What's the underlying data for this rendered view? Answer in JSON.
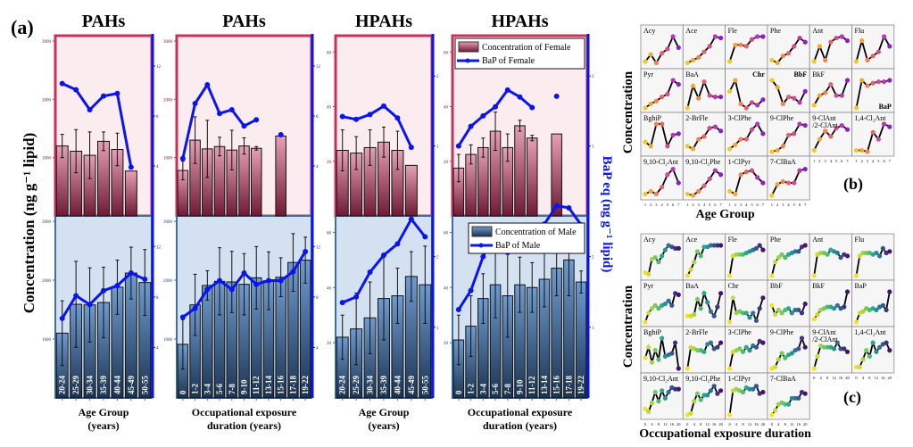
{
  "panel_a_label": "(a)",
  "panel_b_label": "(b)",
  "panel_c_label": "(c)",
  "left_ylabel": "Concentration (ng g⁻¹ lipid)",
  "right_ylabel": "BaP_eq (ng g⁻¹ lipid)",
  "colors": {
    "female_frame": "#c8325a",
    "female_bg": "#fbecf0",
    "female_bar_top": "#e6a0b4",
    "female_bar_bottom": "#6e1a36",
    "male_frame": "#3a6fa8",
    "male_bg": "#d3e1f1",
    "male_bar_top": "#6f9bcf",
    "male_bar_bottom": "#1b3350",
    "bap_line": "#0a14f0"
  },
  "legend_female": {
    "bar": "Concentration of Female",
    "line": "BaP_eq of Female"
  },
  "legend_male": {
    "bar": "Concentration of Male",
    "line": "BaP_eq of Male"
  },
  "chart_data": [
    {
      "type": "bar+line",
      "title": "PAHs",
      "xlabel": "Age Group\n(years)",
      "categories": [
        "20-24",
        "25-29",
        "30-34",
        "35-39",
        "40-44",
        "45-49",
        "50-55"
      ],
      "conc_ylim": [
        0,
        3000
      ],
      "conc_ticks": [
        1000,
        2000,
        3000
      ],
      "bap_ylim": [
        0,
        14
      ],
      "bap_ticks": [
        4,
        8,
        12
      ],
      "female": {
        "conc": [
          1200,
          1110,
          1040,
          1280,
          1140,
          770,
          null
        ],
        "conc_err": [
          200,
          370,
          400,
          160,
          280,
          0,
          null
        ],
        "bap": [
          10.6,
          10.1,
          8.5,
          9.6,
          9.8,
          3.9,
          null
        ]
      },
      "male": {
        "conc": [
          1100,
          1590,
          1580,
          1620,
          1880,
          2120,
          1960
        ],
        "conc_err": [
          550,
          730,
          630,
          600,
          460,
          440,
          560
        ],
        "bap": [
          6.3,
          8.1,
          7.4,
          8.5,
          8.9,
          9.9,
          9.4
        ]
      }
    },
    {
      "type": "bar+line",
      "title": "PAHs",
      "xlabel": "Occupational exposure\nduration (years)",
      "categories": [
        "0",
        "1-2",
        "3-4",
        "5-6",
        "7-8",
        "9-10",
        "11-12",
        "13-14",
        "15-16",
        "17-18",
        "19-22"
      ],
      "conc_ylim": [
        0,
        3000
      ],
      "conc_ticks": [
        1000,
        2000,
        3000
      ],
      "bap_ylim": [
        0,
        14
      ],
      "bap_ticks": [
        4,
        8,
        12
      ],
      "female": {
        "conc": [
          780,
          1300,
          1150,
          1190,
          1130,
          1200,
          1160,
          null,
          1370,
          null,
          null
        ],
        "conc_err": [
          160,
          400,
          490,
          160,
          340,
          140,
          30,
          null,
          0,
          null,
          null
        ],
        "bap": [
          4.6,
          9.0,
          10.5,
          8.2,
          8.5,
          7.2,
          7.7,
          null,
          6.5,
          null,
          null
        ]
      },
      "male": {
        "conc": [
          910,
          1580,
          1910,
          1980,
          1970,
          1930,
          2040,
          1990,
          2050,
          2300,
          2340
        ],
        "conc_err": [
          420,
          520,
          250,
          570,
          520,
          520,
          530,
          490,
          330,
          490,
          390
        ],
        "bap": [
          6.4,
          7.1,
          8.6,
          9.3,
          8.6,
          9.9,
          9.0,
          9.3,
          9.3,
          10.0,
          11.6
        ]
      }
    },
    {
      "type": "bar+line",
      "title": "HPAHs",
      "xlabel": "Age Group\n(years)",
      "categories": [
        "20-24",
        "25-29",
        "30-34",
        "35-39",
        "40-44",
        "45-49",
        "50-55"
      ],
      "conc_ylim": [
        0,
        64
      ],
      "conc_ticks": [
        20,
        40,
        60
      ],
      "bap_ylim": [
        0,
        2.5
      ],
      "bap_ticks": [
        1,
        2
      ],
      "female": {
        "conc": [
          24,
          23,
          25,
          27,
          24,
          18.5,
          null
        ],
        "conc_err": [
          7.5,
          6,
          6.5,
          5.5,
          7,
          0,
          null
        ],
        "bap": [
          1.42,
          1.38,
          1.45,
          1.57,
          1.4,
          0.98,
          null
        ]
      },
      "male": {
        "conc": [
          22,
          25,
          29,
          36,
          37,
          44,
          41
        ],
        "conc_err": [
          8,
          13,
          13,
          15,
          10,
          9,
          14
        ],
        "bap": [
          1.35,
          1.43,
          1.78,
          2.02,
          2.18,
          2.53,
          2.28
        ]
      }
    },
    {
      "type": "bar+line",
      "title": "HPAHs",
      "xlabel": "Occupational exposure\nduration (years)",
      "categories": [
        "0",
        "1-2",
        "3-4",
        "5-6",
        "7-8",
        "9-10",
        "11-12",
        "13-14",
        "15-16",
        "17-18",
        "19-22"
      ],
      "conc_ylim": [
        0,
        64
      ],
      "conc_ticks": [
        20,
        40,
        60
      ],
      "bap_ylim": [
        0,
        2.5
      ],
      "bap_ticks": [
        1,
        2
      ],
      "female": {
        "conc": [
          17.5,
          22.5,
          25,
          31,
          25,
          33,
          28.5,
          null,
          30,
          null,
          null
        ],
        "conc_err": [
          5,
          3.5,
          3.5,
          7,
          5,
          2,
          1,
          null,
          0,
          null,
          null
        ],
        "bap": [
          1.0,
          1.28,
          1.43,
          1.56,
          1.8,
          1.7,
          1.55,
          null,
          1.71,
          null,
          null
        ]
      },
      "male": {
        "conc": [
          21,
          26,
          36,
          41,
          37,
          41,
          40,
          43,
          47,
          50,
          42
        ],
        "conc_err": [
          9,
          11,
          9,
          12,
          15,
          10,
          9,
          10,
          10,
          13,
          4
        ],
        "bap": [
          1.25,
          1.52,
          2.0,
          2.38,
          2.06,
          2.38,
          2.38,
          2.46,
          2.72,
          2.69,
          2.45
        ]
      }
    },
    {
      "type": "line",
      "panel": "(b)",
      "ylabel": "Concentration",
      "xlabel": "Age Group",
      "x": [
        1,
        2,
        3,
        4,
        5,
        6,
        7
      ],
      "colormap": "plasma",
      "series": [
        {
          "name": "Acy",
          "values": [
            0.1,
            0.35,
            0.05,
            0.4,
            0.55,
            1.0,
            0.6
          ]
        },
        {
          "name": "Ace",
          "values": [
            0.05,
            0.15,
            0.25,
            0.45,
            0.65,
            1.0,
            0.95
          ]
        },
        {
          "name": "Fle",
          "values": [
            0.1,
            0.7,
            0.7,
            0.65,
            0.9,
            1.0,
            1.0
          ]
        },
        {
          "name": "Phe",
          "values": [
            0.15,
            0.05,
            0.3,
            0.4,
            0.65,
            0.95,
            0.8
          ]
        },
        {
          "name": "Ant",
          "values": [
            0.1,
            0.65,
            0.15,
            0.8,
            0.95,
            1.0,
            0.85
          ]
        },
        {
          "name": "Flu",
          "values": [
            0.1,
            0.85,
            0.15,
            0.3,
            0.45,
            1.0,
            0.65
          ]
        },
        {
          "name": "Pyr",
          "values": [
            0.0,
            0.15,
            0.25,
            0.4,
            0.5,
            1.0,
            0.85
          ]
        },
        {
          "name": "BaA",
          "values": [
            0.0,
            0.8,
            0.35,
            0.95,
            0.45,
            0.4,
            0.4
          ]
        },
        {
          "name": "Chr",
          "values": [
            0.6,
            1.0,
            0.15,
            0.0,
            0.2,
            0.1,
            0.3
          ]
        },
        {
          "name": "BbF",
          "values": [
            1.0,
            0.75,
            0.15,
            0.4,
            0.35,
            0.2,
            0.6
          ]
        },
        {
          "name": "BkF",
          "values": [
            0.1,
            0.45,
            0.55,
            0.85,
            0.45,
            0.45,
            1.0
          ]
        },
        {
          "name": "BaP",
          "values": [
            0.0,
            1.0,
            0.8,
            0.9,
            0.95,
            0.95,
            1.0
          ]
        },
        {
          "name": "BghiP",
          "values": [
            0.35,
            0.2,
            1.0,
            1.0,
            0.2,
            0.6,
            0.65
          ]
        },
        {
          "name": "2-BrFle",
          "values": [
            0.2,
            0.1,
            0.45,
            0.55,
            0.85,
            0.9,
            0.75
          ]
        },
        {
          "name": "3-ClPhe",
          "values": [
            0.1,
            0.25,
            0.45,
            0.45,
            0.8,
            1.0,
            0.65
          ]
        },
        {
          "name": "9-ClPhe",
          "values": [
            0.0,
            0.05,
            0.2,
            0.6,
            0.65,
            1.0,
            0.95
          ]
        },
        {
          "name": "9-ClAnt /2-ClAnt",
          "values": [
            0.05,
            0.45,
            0.75,
            0.55,
            0.85,
            0.95,
            0.8
          ]
        },
        {
          "name": "1,4-Cl2Ant",
          "values": [
            0.05,
            0.05,
            0.0,
            0.7,
            0.45,
            1.0,
            0.9
          ]
        },
        {
          "name": "9,10-Cl2Ant",
          "values": [
            0.05,
            0.15,
            0.05,
            0.3,
            0.75,
            0.95,
            0.45
          ]
        },
        {
          "name": "9,10-Cl2Phe",
          "values": [
            0.05,
            0.0,
            0.15,
            0.35,
            0.6,
            0.9,
            0.75
          ]
        },
        {
          "name": "1-ClPyr",
          "values": [
            0.15,
            0.05,
            0.75,
            0.85,
            0.9,
            0.65,
            0.45
          ]
        },
        {
          "name": "7-ClBaA",
          "values": [
            0.0,
            0.4,
            0.5,
            0.45,
            0.45,
            0.9,
            0.95
          ]
        }
      ]
    },
    {
      "type": "line",
      "panel": "(c)",
      "ylabel": "Concentration",
      "xlabel": "Occupational exposure duration",
      "x": [
        0,
        2,
        4,
        6,
        8,
        10,
        12,
        14,
        16,
        18,
        20
      ],
      "x_ticks": [
        0,
        4,
        8,
        12,
        16,
        20
      ],
      "colormap": "viridis-reversed",
      "series": [
        {
          "name": "Acy",
          "values": [
            0.1,
            0.05,
            0.55,
            0.6,
            0.45,
            0.65,
            0.85,
            1.0,
            0.95,
            0.9,
            0.9
          ]
        },
        {
          "name": "Ace",
          "values": [
            0.0,
            0.2,
            0.45,
            0.8,
            0.65,
            0.95,
            0.95,
            1.0,
            1.0,
            1.0,
            1.0
          ]
        },
        {
          "name": "Fle",
          "values": [
            0.0,
            0.65,
            0.7,
            0.7,
            0.7,
            0.75,
            0.8,
            0.85,
            0.9,
            1.0,
            0.85
          ]
        },
        {
          "name": "Phe",
          "values": [
            0.0,
            0.45,
            0.6,
            0.7,
            0.6,
            0.7,
            0.75,
            0.8,
            0.8,
            0.95,
            1.0
          ]
        },
        {
          "name": "Ant",
          "values": [
            0.0,
            0.7,
            0.75,
            0.75,
            0.7,
            0.85,
            0.8,
            0.75,
            0.6,
            0.7,
            0.65
          ]
        },
        {
          "name": "Flu",
          "values": [
            0.0,
            0.65,
            0.75,
            0.75,
            0.75,
            0.7,
            0.75,
            0.65,
            0.9,
            0.75,
            0.8
          ]
        },
        {
          "name": "Pyr",
          "values": [
            0.0,
            0.3,
            0.45,
            0.55,
            0.45,
            0.55,
            0.6,
            0.7,
            0.55,
            0.95,
            0.9
          ]
        },
        {
          "name": "BaA",
          "values": [
            0.2,
            0.2,
            0.25,
            0.75,
            0.45,
            0.95,
            0.65,
            0.35,
            0.2,
            0.5,
            0.95
          ]
        },
        {
          "name": "Chr",
          "values": [
            0.0,
            0.8,
            0.3,
            0.35,
            0.3,
            0.3,
            0.15,
            0.3,
            0.05,
            0.45,
            0.8
          ]
        },
        {
          "name": "BbF",
          "values": [
            0.55,
            0.25,
            0.4,
            0.3,
            0.4,
            0.45,
            0.3,
            0.4,
            0.4,
            0.3,
            0.6
          ]
        },
        {
          "name": "BkF",
          "values": [
            0.1,
            0.25,
            0.4,
            0.45,
            0.5,
            0.5,
            0.45,
            0.55,
            0.45,
            0.5,
            1.0
          ]
        },
        {
          "name": "BaP",
          "values": [
            0.0,
            0.3,
            0.35,
            0.45,
            0.4,
            0.45,
            0.4,
            0.5,
            0.55,
            0.4,
            1.0
          ]
        },
        {
          "name": "BghiP",
          "values": [
            0.35,
            0.7,
            0.2,
            0.6,
            0.3,
            1.0,
            0.4,
            0.45,
            0.5,
            0.85,
            0.0
          ]
        },
        {
          "name": "2-BrFle",
          "values": [
            0.0,
            0.7,
            0.65,
            0.6,
            0.6,
            0.55,
            0.8,
            0.85,
            0.65,
            0.7,
            0.85
          ]
        },
        {
          "name": "3-ClPhe",
          "values": [
            0.0,
            0.55,
            0.6,
            0.65,
            0.55,
            0.7,
            0.6,
            0.75,
            0.7,
            0.9,
            0.85
          ]
        },
        {
          "name": "9-ClPhe",
          "values": [
            0.0,
            0.05,
            0.3,
            0.5,
            0.35,
            0.45,
            0.5,
            0.6,
            0.65,
            1.0,
            0.7
          ]
        },
        {
          "name": "9-ClAnt /2-ClAnt",
          "values": [
            0.0,
            0.4,
            0.75,
            0.7,
            0.7,
            0.7,
            0.65,
            0.85,
            0.65,
            0.65,
            0.55
          ]
        },
        {
          "name": "1,4-Cl2Ant",
          "values": [
            0.05,
            0.05,
            0.3,
            0.6,
            0.4,
            0.85,
            0.55,
            0.7,
            0.8,
            0.85,
            0.6
          ]
        },
        {
          "name": "9,10-Cl2Ant",
          "values": [
            0.2,
            0.1,
            0.4,
            0.75,
            0.45,
            0.8,
            0.55,
            0.75,
            0.9,
            0.85,
            0.85
          ]
        },
        {
          "name": "9,10-Cl2Phe",
          "values": [
            0.0,
            0.05,
            0.45,
            0.7,
            0.5,
            0.65,
            0.65,
            0.8,
            0.95,
            0.7,
            0.8
          ]
        },
        {
          "name": "1-ClPyr",
          "values": [
            0.0,
            0.8,
            0.85,
            0.8,
            0.75,
            0.9,
            0.85,
            0.85,
            0.95,
            0.7,
            0.75
          ]
        },
        {
          "name": "7-ClBaA",
          "values": [
            0.0,
            0.15,
            0.35,
            0.4,
            0.35,
            0.35,
            0.55,
            0.55,
            0.55,
            0.75,
            0.7
          ]
        }
      ]
    }
  ]
}
